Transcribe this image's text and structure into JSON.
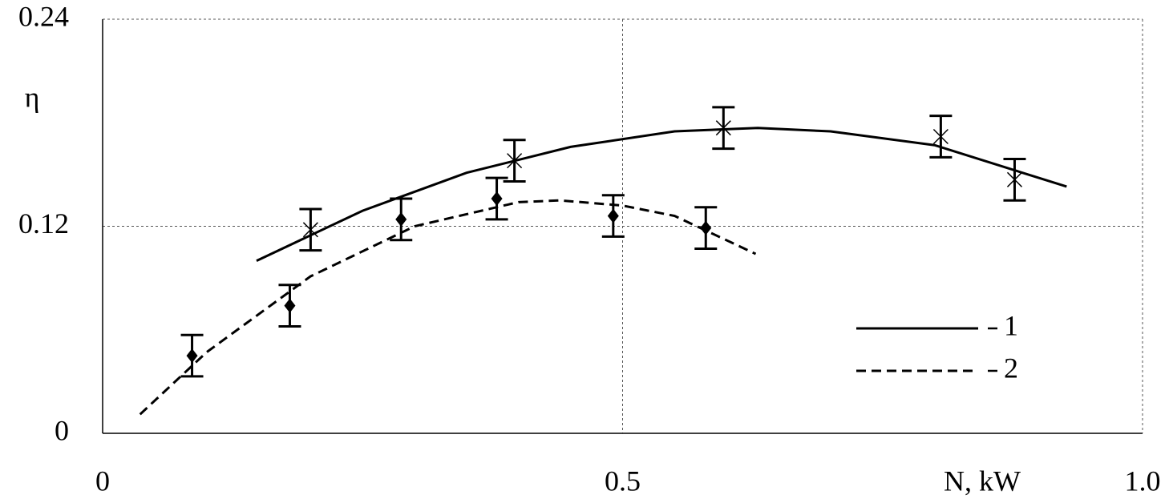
{
  "chart_data": {
    "type": "line",
    "y_label": "η",
    "x_label": "N, kW",
    "xlim": [
      0,
      1
    ],
    "ylim": [
      0,
      0.24
    ],
    "xticks": [
      0,
      0.5,
      {
        "value": 1,
        "label": "1.0"
      }
    ],
    "yticks": [
      0,
      0.12,
      0.24
    ],
    "grid": true,
    "legend": "lower right",
    "series": [
      {
        "name": "1",
        "color": "#000000",
        "line_style": "solid",
        "marker": "x",
        "x": [
          0.2,
          0.396,
          0.597,
          0.806,
          0.877
        ],
        "values": [
          0.118,
          0.158,
          0.177,
          0.172,
          0.147
        ],
        "errors": [
          0.012,
          0.012,
          0.012,
          0.012,
          0.012
        ],
        "fit": {
          "x": [
            0.148,
            0.25,
            0.35,
            0.45,
            0.55,
            0.63,
            0.7,
            0.8,
            0.927
          ],
          "values": [
            0.1,
            0.129,
            0.151,
            0.166,
            0.175,
            0.177,
            0.175,
            0.167,
            0.143
          ]
        }
      },
      {
        "name": "2",
        "color": "#000000",
        "line_style": "dashed",
        "marker": "diamond",
        "x": [
          0.086,
          0.18,
          0.287,
          0.379,
          0.491,
          0.58
        ],
        "values": [
          0.045,
          0.074,
          0.124,
          0.136,
          0.126,
          0.119
        ],
        "errors": [
          0.012,
          0.012,
          0.012,
          0.012,
          0.012,
          0.012
        ],
        "fit": {
          "x": [
            0.036,
            0.1,
            0.2,
            0.3,
            0.4,
            0.44,
            0.5,
            0.55,
            0.628
          ],
          "values": [
            0.011,
            0.047,
            0.091,
            0.12,
            0.134,
            0.135,
            0.132,
            0.126,
            0.104
          ]
        }
      }
    ]
  }
}
